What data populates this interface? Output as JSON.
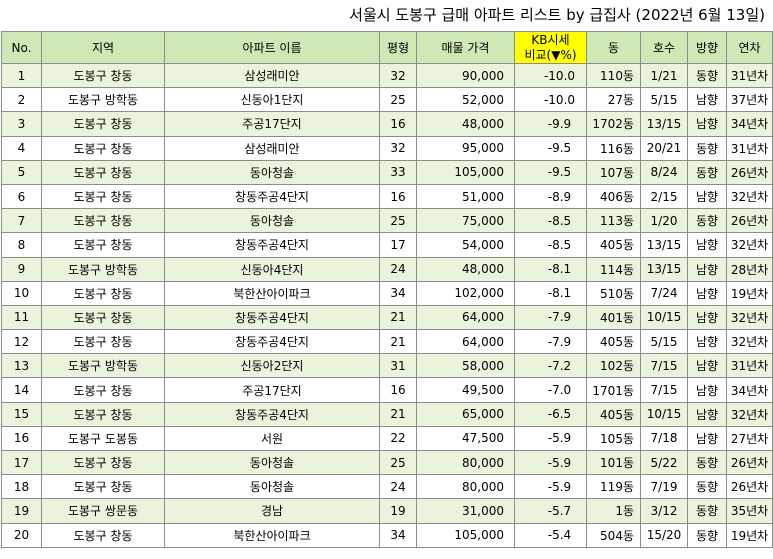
{
  "title": "서울시 도봉구 급매 아파트 리스트 by 급집사 (2022년 6월 13일)",
  "headers": {
    "no": "No.",
    "region": "지역",
    "apt": "아파트 이름",
    "size": "평형",
    "price": "매물 가격",
    "kb_line1": "KB시세",
    "kb_line2": "비교(▼%)",
    "dong": "동",
    "unit": "호수",
    "dir": "방향",
    "age": "연차"
  },
  "rows": [
    {
      "no": "1",
      "region": "도봉구 창동",
      "apt": "삼성래미안",
      "size": "32",
      "price": "90,000",
      "kb": "-10.0",
      "dong": "110동",
      "unit": "1/21",
      "dir": "동향",
      "age": "31년차"
    },
    {
      "no": "2",
      "region": "도봉구 방학동",
      "apt": "신동아1단지",
      "size": "25",
      "price": "52,000",
      "kb": "-10.0",
      "dong": "27동",
      "unit": "5/15",
      "dir": "남향",
      "age": "37년차"
    },
    {
      "no": "3",
      "region": "도봉구 창동",
      "apt": "주공17단지",
      "size": "16",
      "price": "48,000",
      "kb": "-9.9",
      "dong": "1702동",
      "unit": "13/15",
      "dir": "남향",
      "age": "34년차"
    },
    {
      "no": "4",
      "region": "도봉구 창동",
      "apt": "삼성래미안",
      "size": "32",
      "price": "95,000",
      "kb": "-9.5",
      "dong": "116동",
      "unit": "20/21",
      "dir": "동향",
      "age": "31년차"
    },
    {
      "no": "5",
      "region": "도봉구 창동",
      "apt": "동아청솔",
      "size": "33",
      "price": "105,000",
      "kb": "-9.5",
      "dong": "107동",
      "unit": "8/24",
      "dir": "동향",
      "age": "26년차"
    },
    {
      "no": "6",
      "region": "도봉구 창동",
      "apt": "창동주공4단지",
      "size": "16",
      "price": "51,000",
      "kb": "-8.9",
      "dong": "406동",
      "unit": "2/15",
      "dir": "남향",
      "age": "32년차"
    },
    {
      "no": "7",
      "region": "도봉구 창동",
      "apt": "동아청솔",
      "size": "25",
      "price": "75,000",
      "kb": "-8.5",
      "dong": "113동",
      "unit": "1/20",
      "dir": "동향",
      "age": "26년차"
    },
    {
      "no": "8",
      "region": "도봉구 창동",
      "apt": "창동주공4단지",
      "size": "17",
      "price": "54,000",
      "kb": "-8.5",
      "dong": "405동",
      "unit": "13/15",
      "dir": "남향",
      "age": "32년차"
    },
    {
      "no": "9",
      "region": "도봉구 방학동",
      "apt": "신동아4단지",
      "size": "24",
      "price": "48,000",
      "kb": "-8.1",
      "dong": "114동",
      "unit": "13/15",
      "dir": "남향",
      "age": "28년차"
    },
    {
      "no": "10",
      "region": "도봉구 창동",
      "apt": "북한산아이파크",
      "size": "34",
      "price": "102,000",
      "kb": "-8.1",
      "dong": "510동",
      "unit": "7/24",
      "dir": "남향",
      "age": "19년차"
    },
    {
      "no": "11",
      "region": "도봉구 창동",
      "apt": "창동주공4단지",
      "size": "21",
      "price": "64,000",
      "kb": "-7.9",
      "dong": "401동",
      "unit": "10/15",
      "dir": "남향",
      "age": "32년차"
    },
    {
      "no": "12",
      "region": "도봉구 창동",
      "apt": "창동주공4단지",
      "size": "21",
      "price": "64,000",
      "kb": "-7.9",
      "dong": "405동",
      "unit": "5/15",
      "dir": "남향",
      "age": "32년차"
    },
    {
      "no": "13",
      "region": "도봉구 방학동",
      "apt": "신동아2단지",
      "size": "31",
      "price": "58,000",
      "kb": "-7.2",
      "dong": "102동",
      "unit": "7/15",
      "dir": "남향",
      "age": "31년차"
    },
    {
      "no": "14",
      "region": "도봉구 창동",
      "apt": "주공17단지",
      "size": "16",
      "price": "49,500",
      "kb": "-7.0",
      "dong": "1701동",
      "unit": "7/15",
      "dir": "남향",
      "age": "34년차"
    },
    {
      "no": "15",
      "region": "도봉구 창동",
      "apt": "창동주공4단지",
      "size": "21",
      "price": "65,000",
      "kb": "-6.5",
      "dong": "405동",
      "unit": "10/15",
      "dir": "남향",
      "age": "32년차"
    },
    {
      "no": "16",
      "region": "도봉구 도봉동",
      "apt": "서원",
      "size": "22",
      "price": "47,500",
      "kb": "-5.9",
      "dong": "105동",
      "unit": "7/18",
      "dir": "남향",
      "age": "27년차"
    },
    {
      "no": "17",
      "region": "도봉구 창동",
      "apt": "동아청솔",
      "size": "25",
      "price": "80,000",
      "kb": "-5.9",
      "dong": "101동",
      "unit": "5/22",
      "dir": "동향",
      "age": "26년차"
    },
    {
      "no": "18",
      "region": "도봉구 창동",
      "apt": "동아청솔",
      "size": "24",
      "price": "80,000",
      "kb": "-5.9",
      "dong": "119동",
      "unit": "7/19",
      "dir": "동향",
      "age": "26년차"
    },
    {
      "no": "19",
      "region": "도봉구 쌍문동",
      "apt": "경남",
      "size": "19",
      "price": "31,000",
      "kb": "-5.7",
      "dong": "1동",
      "unit": "3/12",
      "dir": "동향",
      "age": "35년차"
    },
    {
      "no": "20",
      "region": "도봉구 창동",
      "apt": "북한산아이파크",
      "size": "34",
      "price": "105,000",
      "kb": "-5.4",
      "dong": "504동",
      "unit": "15/20",
      "dir": "동향",
      "age": "19년차"
    }
  ],
  "colors": {
    "header_bg": "#cfe8b6",
    "kb_header_bg": "#ffff00",
    "odd_row_bg": "#eaf3dc",
    "even_row_bg": "#ffffff"
  }
}
